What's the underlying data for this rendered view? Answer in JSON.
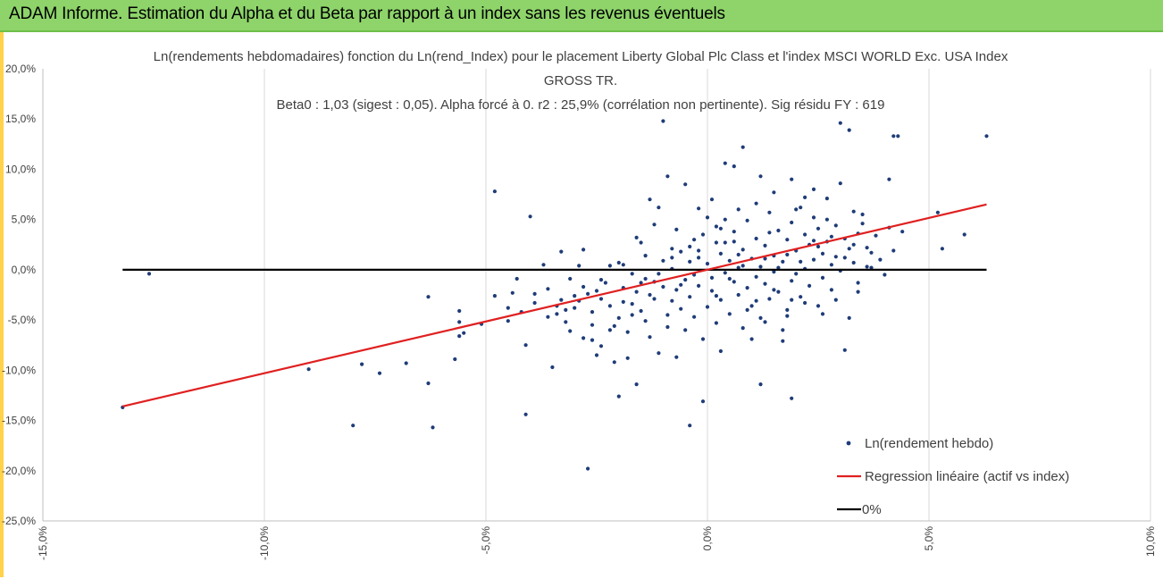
{
  "banner": {
    "title": "ADAM Informe. Estimation du Alpha et du Beta par rapport à un index sans les revenus éventuels"
  },
  "chart_data": {
    "type": "scatter",
    "title_lines": [
      "Ln(rendements hebdomadaires) fonction du Ln(rend_Index) pour le placement Liberty Global Plc Class  et l'index MSCI  WORLD Exc. USA Index",
      "GROSS TR.",
      "Beta0 : 1,03  (sigest : 0,05).  Alpha forcé à 0. r2 : 25,9% (corrélation non pertinente). Sig résidu FY : 619"
    ],
    "xlim": [
      -0.15,
      0.1
    ],
    "ylim": [
      -0.25,
      0.2
    ],
    "x_ticks": [
      -0.15,
      -0.1,
      -0.05,
      0.0,
      0.05,
      0.1
    ],
    "x_tick_labels": [
      "-15,0%",
      "-10,0%",
      "-5,0%",
      "0,0%",
      "5,0%",
      "10,0%"
    ],
    "y_ticks": [
      0.2,
      0.15,
      0.1,
      0.05,
      0.0,
      -0.05,
      -0.1,
      -0.15,
      -0.2,
      -0.25
    ],
    "y_tick_labels": [
      "20,0%",
      "15,0%",
      "10,0%",
      "5,0%",
      "0,0%",
      "-5,0%",
      "-10,0%",
      "-15,0%",
      "-20,0%",
      "-25,0%"
    ],
    "grid": "vertical",
    "legend_position": "bottom-right",
    "series": [
      {
        "name": "Ln(rendement hebdo)",
        "kind": "scatter",
        "color": "#1f3c78",
        "points": [
          [
            -0.132,
            -0.137
          ],
          [
            -0.126,
            -0.004
          ],
          [
            -0.09,
            -0.099
          ],
          [
            -0.08,
            -0.155
          ],
          [
            -0.078,
            -0.094
          ],
          [
            -0.074,
            -0.103
          ],
          [
            -0.068,
            -0.093
          ],
          [
            -0.063,
            -0.027
          ],
          [
            -0.063,
            -0.113
          ],
          [
            -0.062,
            -0.157
          ],
          [
            -0.057,
            -0.089
          ],
          [
            -0.056,
            -0.041
          ],
          [
            -0.056,
            -0.052
          ],
          [
            -0.056,
            -0.066
          ],
          [
            -0.055,
            -0.063
          ],
          [
            -0.051,
            -0.054
          ],
          [
            -0.048,
            0.078
          ],
          [
            -0.048,
            -0.026
          ],
          [
            -0.045,
            -0.051
          ],
          [
            -0.044,
            -0.023
          ],
          [
            -0.043,
            -0.009
          ],
          [
            -0.042,
            -0.042
          ],
          [
            -0.041,
            -0.075
          ],
          [
            -0.041,
            -0.144
          ],
          [
            -0.04,
            0.053
          ],
          [
            -0.039,
            -0.024
          ],
          [
            -0.037,
            0.005
          ],
          [
            -0.036,
            -0.019
          ],
          [
            -0.035,
            -0.097
          ],
          [
            -0.034,
            -0.036
          ],
          [
            -0.034,
            -0.044
          ],
          [
            -0.033,
            -0.03
          ],
          [
            -0.033,
            0.018
          ],
          [
            -0.032,
            -0.052
          ],
          [
            -0.031,
            -0.061
          ],
          [
            -0.03,
            -0.038
          ],
          [
            -0.03,
            -0.026
          ],
          [
            -0.029,
            -0.031
          ],
          [
            -0.028,
            -0.068
          ],
          [
            -0.028,
            0.02
          ],
          [
            -0.027,
            -0.024
          ],
          [
            -0.027,
            -0.198
          ],
          [
            -0.026,
            -0.042
          ],
          [
            -0.026,
            -0.055
          ],
          [
            -0.025,
            -0.021
          ],
          [
            -0.025,
            -0.085
          ],
          [
            -0.024,
            -0.076
          ],
          [
            -0.024,
            -0.029
          ],
          [
            -0.023,
            -0.013
          ],
          [
            -0.022,
            -0.036
          ],
          [
            -0.022,
            0.004
          ],
          [
            -0.021,
            -0.056
          ],
          [
            -0.021,
            -0.092
          ],
          [
            -0.02,
            -0.126
          ],
          [
            -0.02,
            -0.048
          ],
          [
            -0.019,
            -0.018
          ],
          [
            -0.019,
            -0.032
          ],
          [
            -0.018,
            -0.088
          ],
          [
            -0.018,
            -0.062
          ],
          [
            -0.017,
            -0.034
          ],
          [
            -0.017,
            -0.004
          ],
          [
            -0.016,
            -0.022
          ],
          [
            -0.016,
            -0.114
          ],
          [
            -0.015,
            0.027
          ],
          [
            -0.015,
            -0.041
          ],
          [
            -0.014,
            -0.009
          ],
          [
            -0.014,
            -0.051
          ],
          [
            -0.013,
            -0.067
          ],
          [
            -0.013,
            0.07
          ],
          [
            -0.012,
            -0.012
          ],
          [
            -0.012,
            -0.029
          ],
          [
            -0.011,
            0.062
          ],
          [
            -0.011,
            -0.083
          ],
          [
            -0.01,
            -0.017
          ],
          [
            -0.01,
            0.009
          ],
          [
            -0.009,
            -0.045
          ],
          [
            -0.009,
            -0.057
          ],
          [
            -0.008,
            -0.031
          ],
          [
            -0.008,
            0.001
          ],
          [
            -0.007,
            -0.087
          ],
          [
            -0.007,
            -0.02
          ],
          [
            -0.006,
            0.018
          ],
          [
            -0.006,
            -0.039
          ],
          [
            -0.005,
            -0.01
          ],
          [
            -0.005,
            -0.06
          ],
          [
            -0.004,
            0.023
          ],
          [
            -0.004,
            -0.027
          ],
          [
            -0.003,
            -0.005
          ],
          [
            -0.003,
            -0.047
          ],
          [
            -0.002,
            0.012
          ],
          [
            -0.002,
            -0.016
          ],
          [
            -0.001,
            -0.069
          ],
          [
            -0.001,
            0.035
          ],
          [
            0.0,
            -0.037
          ],
          [
            0.0,
            0.006
          ],
          [
            0.001,
            -0.021
          ],
          [
            0.001,
            -0.008
          ],
          [
            0.002,
            0.043
          ],
          [
            0.002,
            -0.053
          ],
          [
            0.003,
            0.016
          ],
          [
            0.003,
            -0.03
          ],
          [
            0.004,
            -0.003
          ],
          [
            0.004,
            0.027
          ],
          [
            0.005,
            -0.044
          ],
          [
            0.005,
            0.009
          ],
          [
            0.006,
            -0.012
          ],
          [
            0.006,
            0.038
          ],
          [
            0.007,
            -0.025
          ],
          [
            0.007,
            0.002
          ],
          [
            0.008,
            0.02
          ],
          [
            0.008,
            -0.058
          ],
          [
            0.009,
            0.049
          ],
          [
            0.009,
            -0.018
          ],
          [
            0.01,
            0.011
          ],
          [
            0.01,
            -0.036
          ],
          [
            0.011,
            -0.007
          ],
          [
            0.011,
            0.031
          ],
          [
            0.012,
            0.003
          ],
          [
            0.012,
            -0.048
          ],
          [
            0.013,
            0.024
          ],
          [
            0.013,
            -0.014
          ],
          [
            0.014,
            0.057
          ],
          [
            0.014,
            -0.029
          ],
          [
            0.015,
            0.014
          ],
          [
            0.015,
            -0.002
          ],
          [
            0.016,
            0.039
          ],
          [
            0.016,
            -0.022
          ],
          [
            0.017,
            -0.06
          ],
          [
            0.017,
            0.008
          ],
          [
            0.018,
            0.03
          ],
          [
            0.018,
            -0.04
          ],
          [
            0.019,
            0.047
          ],
          [
            0.019,
            -0.011
          ],
          [
            0.02,
            0.019
          ],
          [
            0.02,
            -0.004
          ],
          [
            0.021,
            0.062
          ],
          [
            0.021,
            -0.027
          ],
          [
            0.022,
            0.035
          ],
          [
            0.022,
            0.001
          ],
          [
            0.023,
            0.025
          ],
          [
            0.023,
            -0.016
          ],
          [
            0.024,
            0.052
          ],
          [
            0.024,
            0.01
          ],
          [
            0.025,
            -0.036
          ],
          [
            0.025,
            0.041
          ],
          [
            0.026,
            0.016
          ],
          [
            0.026,
            -0.008
          ],
          [
            0.027,
            0.071
          ],
          [
            0.027,
            0.028
          ],
          [
            0.028,
            0.005
          ],
          [
            0.028,
            -0.02
          ],
          [
            0.029,
            0.044
          ],
          [
            0.029,
            0.013
          ],
          [
            0.03,
            0.086
          ],
          [
            0.03,
            -0.001
          ],
          [
            0.031,
            0.031
          ],
          [
            0.031,
            -0.08
          ],
          [
            0.032,
            0.021
          ],
          [
            0.032,
            -0.048
          ],
          [
            0.033,
            0.058
          ],
          [
            0.033,
            0.007
          ],
          [
            0.034,
            0.036
          ],
          [
            0.034,
            -0.013
          ],
          [
            0.035,
            0.046
          ],
          [
            0.036,
            0.003
          ],
          [
            0.036,
            0.022
          ],
          [
            0.038,
            0.034
          ],
          [
            0.039,
            0.01
          ],
          [
            0.04,
            -0.005
          ],
          [
            0.041,
            0.09
          ],
          [
            0.041,
            0.042
          ],
          [
            0.042,
            0.019
          ],
          [
            0.042,
            0.133
          ],
          [
            0.044,
            0.038
          ],
          [
            0.052,
            0.057
          ],
          [
            0.053,
            0.021
          ],
          [
            0.058,
            0.035
          ],
          [
            0.063,
            0.133
          ],
          [
            -0.009,
            0.093
          ],
          [
            -0.01,
            0.148
          ],
          [
            -0.005,
            0.085
          ],
          [
            0.004,
            0.106
          ],
          [
            0.008,
            0.122
          ],
          [
            0.006,
            0.103
          ],
          [
            0.012,
            0.093
          ],
          [
            0.019,
            0.09
          ],
          [
            0.024,
            0.08
          ],
          [
            0.03,
            0.146
          ],
          [
            0.032,
            0.139
          ],
          [
            0.043,
            0.133
          ],
          [
            -0.004,
            -0.155
          ],
          [
            -0.001,
            -0.131
          ],
          [
            0.012,
            -0.114
          ],
          [
            0.019,
            -0.128
          ],
          [
            0.003,
            -0.081
          ],
          [
            0.01,
            -0.069
          ],
          [
            0.017,
            -0.071
          ],
          [
            -0.002,
            0.061
          ],
          [
            0.001,
            0.07
          ],
          [
            0.011,
            0.066
          ],
          [
            0.015,
            0.077
          ],
          [
            0.022,
            0.072
          ],
          [
            -0.029,
            0.004
          ],
          [
            -0.031,
            -0.009
          ],
          [
            -0.014,
            0.014
          ],
          [
            -0.02,
            0.007
          ],
          [
            -0.003,
            0.03
          ],
          [
            0.004,
            0.05
          ],
          [
            0.007,
            0.06
          ],
          [
            -0.008,
            0.021
          ],
          [
            -0.006,
            -0.015
          ],
          [
            0.002,
            -0.026
          ],
          [
            0.009,
            -0.04
          ],
          [
            0.013,
            -0.052
          ],
          [
            0.018,
            -0.046
          ],
          [
            0.022,
            -0.033
          ],
          [
            0.026,
            -0.044
          ],
          [
            0.029,
            -0.03
          ],
          [
            -0.012,
            0.045
          ],
          [
            -0.016,
            0.032
          ],
          [
            -0.007,
            0.04
          ],
          [
            0.0,
            0.052
          ],
          [
            0.006,
            0.028
          ],
          [
            0.014,
            0.037
          ],
          [
            0.02,
            0.06
          ],
          [
            0.027,
            0.05
          ],
          [
            0.035,
            0.055
          ],
          [
            0.037,
            0.017
          ],
          [
            0.024,
            0.029
          ],
          [
            0.031,
            0.012
          ],
          [
            0.016,
            0.002
          ],
          [
            0.011,
            -0.031
          ],
          [
            0.005,
            -0.009
          ],
          [
            -0.002,
            0.019
          ],
          [
            -0.011,
            -0.004
          ],
          [
            -0.015,
            -0.013
          ],
          [
            -0.019,
            0.005
          ],
          [
            -0.024,
            -0.01
          ],
          [
            -0.028,
            -0.017
          ],
          [
            -0.032,
            -0.04
          ],
          [
            -0.036,
            -0.047
          ],
          [
            -0.039,
            -0.033
          ],
          [
            -0.045,
            -0.038
          ],
          [
            0.002,
            0.027
          ],
          [
            0.003,
            0.041
          ],
          [
            0.008,
            0.004
          ],
          [
            0.013,
            0.011
          ],
          [
            0.018,
            0.015
          ],
          [
            0.021,
            0.008
          ],
          [
            0.025,
            0.023
          ],
          [
            0.028,
            0.033
          ],
          [
            0.033,
            0.025
          ],
          [
            0.019,
            -0.03
          ],
          [
            0.015,
            -0.02
          ],
          [
            0.007,
            0.015
          ],
          [
            -0.004,
            0.008
          ],
          [
            -0.008,
            0.012
          ],
          [
            -0.013,
            -0.025
          ],
          [
            -0.017,
            -0.045
          ],
          [
            -0.022,
            -0.06
          ],
          [
            -0.026,
            -0.07
          ],
          [
            0.034,
            -0.022
          ],
          [
            0.037,
            0.002
          ]
        ]
      },
      {
        "name": "Regression linéaire (actif vs index)",
        "kind": "line",
        "color": "#e02020",
        "x": [
          -0.132,
          0.063
        ],
        "y": [
          -0.136,
          0.065
        ]
      },
      {
        "name": "0%",
        "kind": "line",
        "color": "#000000",
        "x": [
          -0.132,
          0.063
        ],
        "y": [
          0.0,
          0.0
        ]
      }
    ]
  }
}
